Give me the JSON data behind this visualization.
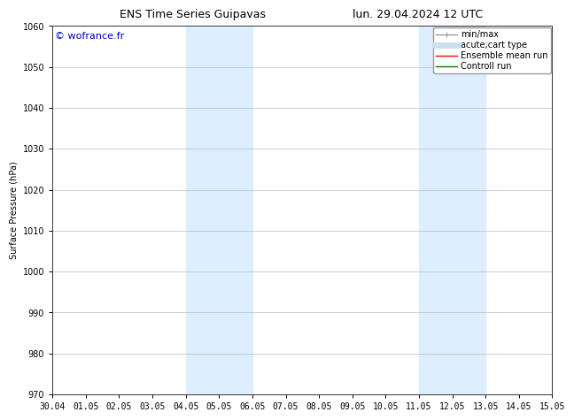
{
  "title_left": "ENS Time Series Guipavas",
  "title_right": "lun. 29.04.2024 12 UTC",
  "ylabel": "Surface Pressure (hPa)",
  "ylim": [
    970,
    1060
  ],
  "yticks": [
    970,
    980,
    990,
    1000,
    1010,
    1020,
    1030,
    1040,
    1050,
    1060
  ],
  "xtick_labels": [
    "30.04",
    "01.05",
    "02.05",
    "03.05",
    "04.05",
    "05.05",
    "06.05",
    "07.05",
    "08.05",
    "09.05",
    "10.05",
    "11.05",
    "12.05",
    "13.05",
    "14.05",
    "15.05"
  ],
  "watermark": "© wofrance.fr",
  "watermark_color": "#0000cc",
  "background_color": "#ffffff",
  "plot_bg_color": "#ffffff",
  "shaded_bands": [
    {
      "xstart": 4.0,
      "xend": 6.0,
      "color": "#ddeeff"
    },
    {
      "xstart": 11.0,
      "xend": 13.0,
      "color": "#ddeeff"
    }
  ],
  "legend_entries": [
    {
      "label": "min/max",
      "color": "#999999",
      "lw": 1.0,
      "style": "errorbar"
    },
    {
      "label": "acute;cart type",
      "color": "#cce0f0",
      "lw": 5,
      "style": "line"
    },
    {
      "label": "Ensemble mean run",
      "color": "#ff0000",
      "lw": 1.0,
      "style": "line"
    },
    {
      "label": "Controll run",
      "color": "#007700",
      "lw": 1.0,
      "style": "line"
    }
  ],
  "grid_color": "#bbbbbb",
  "font_size": 7,
  "title_font_size": 9,
  "ylabel_font_size": 7
}
